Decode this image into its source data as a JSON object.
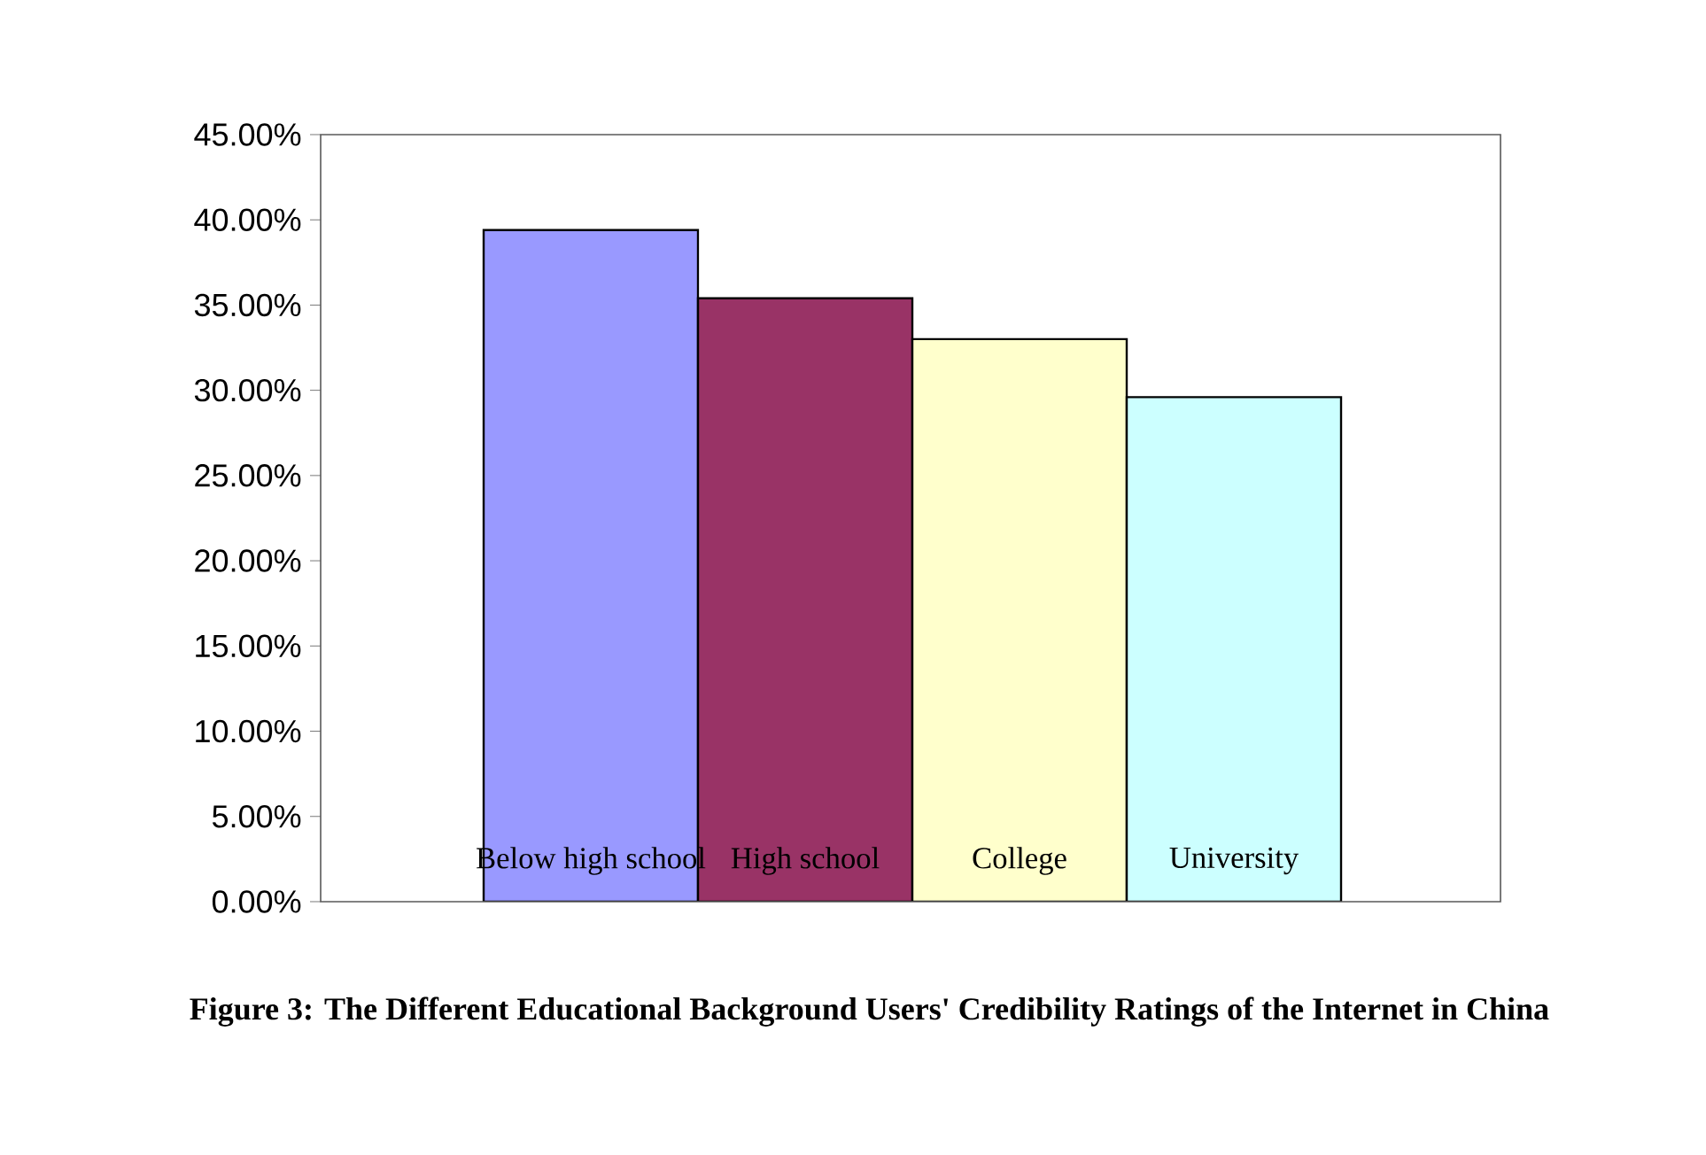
{
  "chart_data": {
    "type": "bar",
    "title": "Figure 3: The Different Educational Background Users' Credibility Ratings of the Internet in China",
    "categories": [
      "Below high school",
      "High school",
      "College",
      "University"
    ],
    "values": [
      39.4,
      35.4,
      33.0,
      29.6
    ],
    "colors": [
      "#9999ff",
      "#993366",
      "#ffffcc",
      "#ccffff"
    ],
    "ylim": [
      0,
      45
    ],
    "yticks": [
      {
        "value": 0,
        "label": "0.00%"
      },
      {
        "value": 5,
        "label": "5.00%"
      },
      {
        "value": 10,
        "label": "10.00%"
      },
      {
        "value": 15,
        "label": "15.00%"
      },
      {
        "value": 20,
        "label": "20.00%"
      },
      {
        "value": 25,
        "label": "25.00%"
      },
      {
        "value": 30,
        "label": "30.00%"
      },
      {
        "value": 35,
        "label": "35.00%"
      },
      {
        "value": 40,
        "label": "40.00%"
      },
      {
        "value": 45,
        "label": "45.00%"
      }
    ],
    "grid": false
  }
}
